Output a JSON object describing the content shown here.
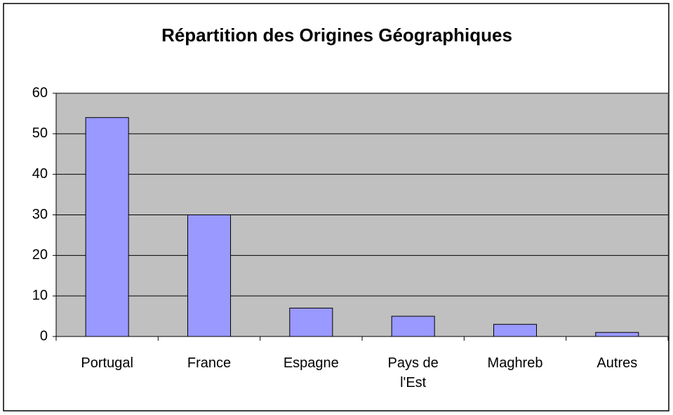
{
  "chart_data": {
    "type": "bar",
    "title": "Répartition des Origines Géographiques",
    "categories": [
      "Portugal",
      "France",
      "Espagne",
      "Pays de l'Est",
      "Maghreb",
      "Autres"
    ],
    "values": [
      54,
      30,
      7,
      5,
      3,
      1
    ],
    "color": "#9999ff",
    "ylim": [
      0,
      60
    ],
    "yticks": [
      0,
      10,
      20,
      30,
      40,
      50,
      60
    ],
    "grid": true
  }
}
